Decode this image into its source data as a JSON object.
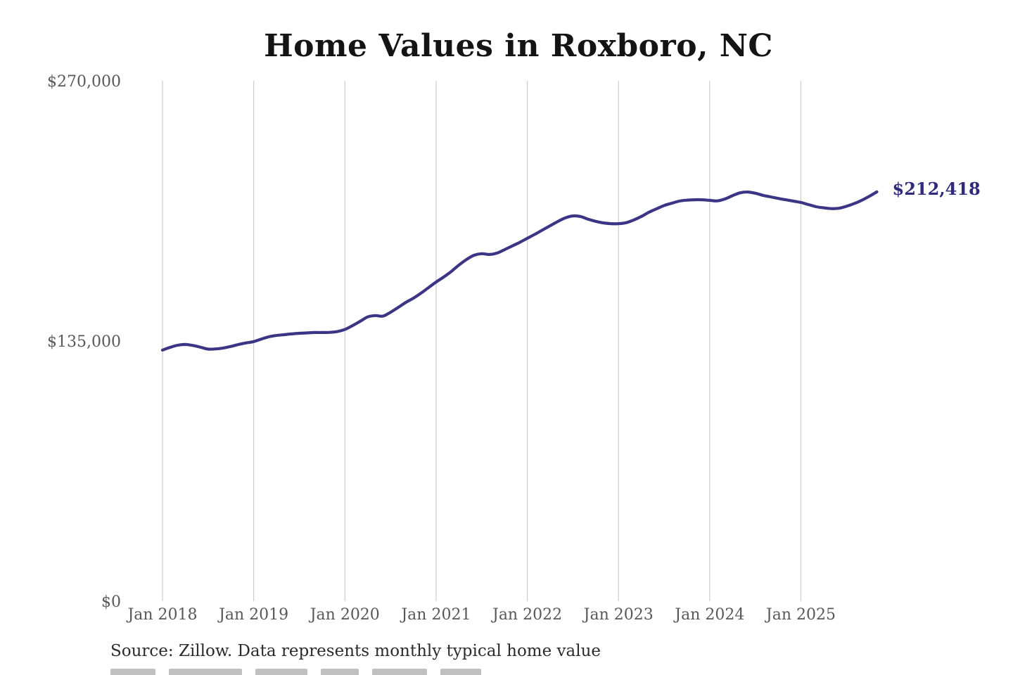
{
  "chart_data": {
    "type": "line",
    "title": "Home Values in Roxboro, NC",
    "xlabel": "",
    "ylabel": "",
    "ylim": [
      0,
      270000
    ],
    "y_ticks": [
      0,
      135000,
      270000
    ],
    "y_tick_labels": [
      "$0",
      "$135,000",
      "$270,000"
    ],
    "x_tick_labels": [
      "Jan 2018",
      "Jan 2019",
      "Jan 2020",
      "Jan 2021",
      "Jan 2022",
      "Jan 2023",
      "Jan 2024",
      "Jan 2025"
    ],
    "grid": "vertical-only",
    "legend_position": "none",
    "end_label": "$212,418",
    "line_color": "#3c3585",
    "grid_color": "#cdcdcd",
    "axis_label_color": "#58585a",
    "end_label_color": "#2f2a7b",
    "series": [
      {
        "name": "Monthly typical home value",
        "x_start": "Jan 2018",
        "x_end": "Nov 2025",
        "x_interval": "month",
        "values": [
          130300,
          131700,
          132800,
          133200,
          132700,
          131800,
          130800,
          130900,
          131400,
          132200,
          133200,
          134000,
          134700,
          136000,
          137200,
          137900,
          138300,
          138700,
          139000,
          139200,
          139400,
          139400,
          139500,
          139900,
          141000,
          143000,
          145200,
          147500,
          148200,
          147900,
          149900,
          152400,
          155000,
          157200,
          159800,
          162700,
          165600,
          168200,
          171100,
          174400,
          177300,
          179500,
          180300,
          179900,
          180600,
          182400,
          184300,
          186200,
          188300,
          190400,
          192600,
          194800,
          197000,
          198900,
          199900,
          199600,
          198200,
          197100,
          196300,
          195900,
          195900,
          196400,
          197800,
          199600,
          201800,
          203600,
          205300,
          206500,
          207600,
          208100,
          208300,
          208300,
          208000,
          207700,
          208700,
          210400,
          211900,
          212300,
          211700,
          210600,
          209800,
          209000,
          208300,
          207600,
          206900,
          205800,
          204700,
          204100,
          203700,
          203900,
          204900,
          206300,
          208000,
          210100,
          212418
        ]
      }
    ]
  },
  "source_note": "Source: Zillow. Data represents monthly typical home value"
}
